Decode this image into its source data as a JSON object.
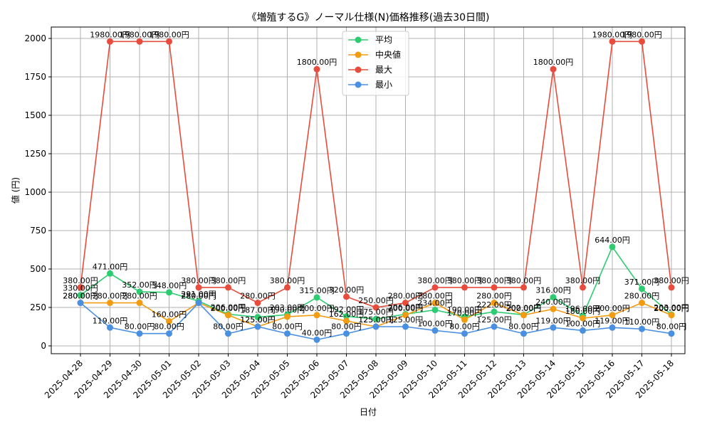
{
  "chart_data": {
    "type": "line",
    "title": "《増殖するG》ノーマル仕様(N)価格推移(過去30日間)",
    "xlabel": "日付",
    "ylabel": "値 (円)",
    "ylim": [
      -50,
      2075
    ],
    "yticks": [
      0,
      250,
      500,
      750,
      1000,
      1250,
      1500,
      1750,
      2000
    ],
    "grid": true,
    "legend_position": "top-center",
    "label_suffix": "円",
    "categories": [
      "2025-04-28",
      "2025-04-29",
      "2025-04-30",
      "2025-05-01",
      "2025-05-02",
      "2025-05-03",
      "2025-05-04",
      "2025-05-05",
      "2025-05-06",
      "2025-05-07",
      "2025-05-08",
      "2025-05-09",
      "2025-05-10",
      "2025-05-11",
      "2025-05-12",
      "2025-05-13",
      "2025-05-14",
      "2025-05-15",
      "2025-05-16",
      "2025-05-17",
      "2025-05-18"
    ],
    "series": [
      {
        "name": "平均",
        "color": "#2ecc71",
        "values": [
          330,
          471,
          352,
          348,
          291,
          206,
          187,
          203,
          315,
          192,
          175,
          206,
          234,
          190,
          222,
          202,
          316,
          196,
          644,
          371,
          203
        ]
      },
      {
        "name": "中央値",
        "color": "#f39c12",
        "values": [
          280,
          280,
          280,
          160,
          280,
          200,
          125,
          190,
          200,
          162,
          125,
          200,
          280,
          170,
          280,
          200,
          240,
          180,
          200,
          280,
          200
        ]
      },
      {
        "name": "最大",
        "color": "#e74c3c",
        "values": [
          380,
          1980,
          1980,
          1980,
          380,
          380,
          280,
          380,
          1800,
          320,
          250,
          280,
          380,
          380,
          380,
          380,
          1800,
          380,
          1980,
          1980,
          380
        ]
      },
      {
        "name": "最小",
        "color": "#4a90e2",
        "values": [
          280,
          119,
          80,
          80,
          280,
          80,
          125,
          80,
          40,
          80,
          125,
          125,
          100,
          80,
          125,
          80,
          119,
          100,
          119,
          110,
          80
        ]
      }
    ]
  }
}
